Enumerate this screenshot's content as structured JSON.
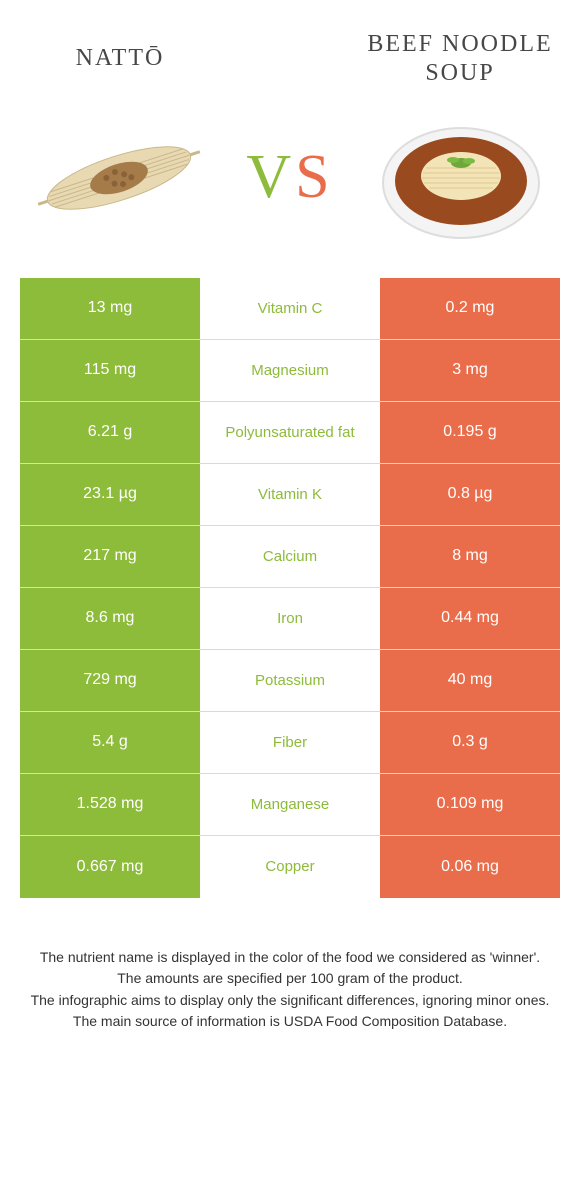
{
  "colors": {
    "left": "#8dbb3a",
    "right": "#e96d4b",
    "border": "#d9d9d9",
    "text": "#333333",
    "header_text": "#474747"
  },
  "foods": {
    "left": {
      "name": "Nattō"
    },
    "right": {
      "name": "Beef noodle soup"
    }
  },
  "vs_label": {
    "v": "V",
    "s": "S"
  },
  "rows": [
    {
      "nutrient": "Vitamin C",
      "left": "13 mg",
      "right": "0.2 mg",
      "winner": "left"
    },
    {
      "nutrient": "Magnesium",
      "left": "115 mg",
      "right": "3 mg",
      "winner": "left"
    },
    {
      "nutrient": "Polyunsaturated fat",
      "left": "6.21 g",
      "right": "0.195 g",
      "winner": "left"
    },
    {
      "nutrient": "Vitamin K",
      "left": "23.1 µg",
      "right": "0.8 µg",
      "winner": "left"
    },
    {
      "nutrient": "Calcium",
      "left": "217 mg",
      "right": "8 mg",
      "winner": "left"
    },
    {
      "nutrient": "Iron",
      "left": "8.6 mg",
      "right": "0.44 mg",
      "winner": "left"
    },
    {
      "nutrient": "Potassium",
      "left": "729 mg",
      "right": "40 mg",
      "winner": "left"
    },
    {
      "nutrient": "Fiber",
      "left": "5.4 g",
      "right": "0.3 g",
      "winner": "left"
    },
    {
      "nutrient": "Manganese",
      "left": "1.528 mg",
      "right": "0.109 mg",
      "winner": "left"
    },
    {
      "nutrient": "Copper",
      "left": "0.667 mg",
      "right": "0.06 mg",
      "winner": "left"
    }
  ],
  "footnotes": [
    "The nutrient name is displayed in the color of the food we considered as 'winner'.",
    "The amounts are specified per 100 gram of the product.",
    "The infographic aims to display only the significant differences, ignoring minor ones.",
    "The main source of information is USDA Food Composition Database."
  ]
}
